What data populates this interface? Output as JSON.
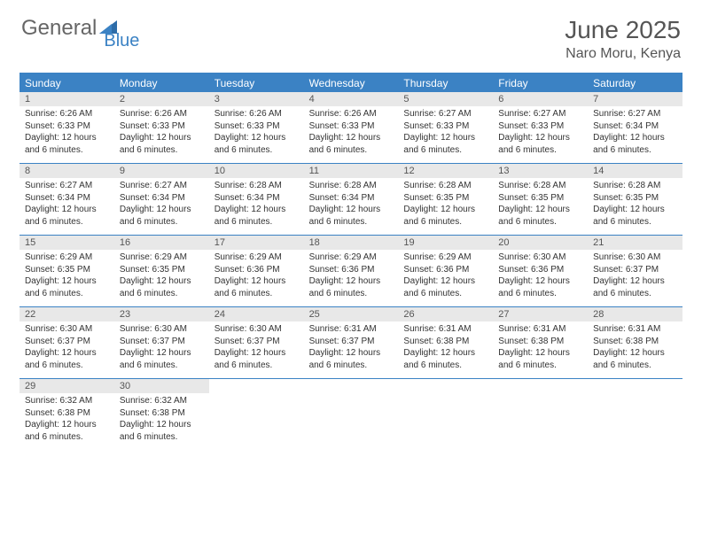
{
  "logo": {
    "general": "General",
    "blue": "Blue"
  },
  "header": {
    "title": "June 2025",
    "location": "Naro Moru, Kenya"
  },
  "colors": {
    "accent": "#3b82c4",
    "header_bg": "#3b82c4",
    "header_text": "#ffffff",
    "daynum_bg": "#e8e8e8",
    "text": "#333333",
    "title_text": "#555555"
  },
  "day_names": [
    "Sunday",
    "Monday",
    "Tuesday",
    "Wednesday",
    "Thursday",
    "Friday",
    "Saturday"
  ],
  "calendar": {
    "type": "table",
    "columns": 7,
    "weeks": [
      [
        {
          "n": "1",
          "sunrise": "6:26 AM",
          "sunset": "6:33 PM",
          "daylight": "12 hours and 6 minutes."
        },
        {
          "n": "2",
          "sunrise": "6:26 AM",
          "sunset": "6:33 PM",
          "daylight": "12 hours and 6 minutes."
        },
        {
          "n": "3",
          "sunrise": "6:26 AM",
          "sunset": "6:33 PM",
          "daylight": "12 hours and 6 minutes."
        },
        {
          "n": "4",
          "sunrise": "6:26 AM",
          "sunset": "6:33 PM",
          "daylight": "12 hours and 6 minutes."
        },
        {
          "n": "5",
          "sunrise": "6:27 AM",
          "sunset": "6:33 PM",
          "daylight": "12 hours and 6 minutes."
        },
        {
          "n": "6",
          "sunrise": "6:27 AM",
          "sunset": "6:33 PM",
          "daylight": "12 hours and 6 minutes."
        },
        {
          "n": "7",
          "sunrise": "6:27 AM",
          "sunset": "6:34 PM",
          "daylight": "12 hours and 6 minutes."
        }
      ],
      [
        {
          "n": "8",
          "sunrise": "6:27 AM",
          "sunset": "6:34 PM",
          "daylight": "12 hours and 6 minutes."
        },
        {
          "n": "9",
          "sunrise": "6:27 AM",
          "sunset": "6:34 PM",
          "daylight": "12 hours and 6 minutes."
        },
        {
          "n": "10",
          "sunrise": "6:28 AM",
          "sunset": "6:34 PM",
          "daylight": "12 hours and 6 minutes."
        },
        {
          "n": "11",
          "sunrise": "6:28 AM",
          "sunset": "6:34 PM",
          "daylight": "12 hours and 6 minutes."
        },
        {
          "n": "12",
          "sunrise": "6:28 AM",
          "sunset": "6:35 PM",
          "daylight": "12 hours and 6 minutes."
        },
        {
          "n": "13",
          "sunrise": "6:28 AM",
          "sunset": "6:35 PM",
          "daylight": "12 hours and 6 minutes."
        },
        {
          "n": "14",
          "sunrise": "6:28 AM",
          "sunset": "6:35 PM",
          "daylight": "12 hours and 6 minutes."
        }
      ],
      [
        {
          "n": "15",
          "sunrise": "6:29 AM",
          "sunset": "6:35 PM",
          "daylight": "12 hours and 6 minutes."
        },
        {
          "n": "16",
          "sunrise": "6:29 AM",
          "sunset": "6:35 PM",
          "daylight": "12 hours and 6 minutes."
        },
        {
          "n": "17",
          "sunrise": "6:29 AM",
          "sunset": "6:36 PM",
          "daylight": "12 hours and 6 minutes."
        },
        {
          "n": "18",
          "sunrise": "6:29 AM",
          "sunset": "6:36 PM",
          "daylight": "12 hours and 6 minutes."
        },
        {
          "n": "19",
          "sunrise": "6:29 AM",
          "sunset": "6:36 PM",
          "daylight": "12 hours and 6 minutes."
        },
        {
          "n": "20",
          "sunrise": "6:30 AM",
          "sunset": "6:36 PM",
          "daylight": "12 hours and 6 minutes."
        },
        {
          "n": "21",
          "sunrise": "6:30 AM",
          "sunset": "6:37 PM",
          "daylight": "12 hours and 6 minutes."
        }
      ],
      [
        {
          "n": "22",
          "sunrise": "6:30 AM",
          "sunset": "6:37 PM",
          "daylight": "12 hours and 6 minutes."
        },
        {
          "n": "23",
          "sunrise": "6:30 AM",
          "sunset": "6:37 PM",
          "daylight": "12 hours and 6 minutes."
        },
        {
          "n": "24",
          "sunrise": "6:30 AM",
          "sunset": "6:37 PM",
          "daylight": "12 hours and 6 minutes."
        },
        {
          "n": "25",
          "sunrise": "6:31 AM",
          "sunset": "6:37 PM",
          "daylight": "12 hours and 6 minutes."
        },
        {
          "n": "26",
          "sunrise": "6:31 AM",
          "sunset": "6:38 PM",
          "daylight": "12 hours and 6 minutes."
        },
        {
          "n": "27",
          "sunrise": "6:31 AM",
          "sunset": "6:38 PM",
          "daylight": "12 hours and 6 minutes."
        },
        {
          "n": "28",
          "sunrise": "6:31 AM",
          "sunset": "6:38 PM",
          "daylight": "12 hours and 6 minutes."
        }
      ],
      [
        {
          "n": "29",
          "sunrise": "6:32 AM",
          "sunset": "6:38 PM",
          "daylight": "12 hours and 6 minutes."
        },
        {
          "n": "30",
          "sunrise": "6:32 AM",
          "sunset": "6:38 PM",
          "daylight": "12 hours and 6 minutes."
        },
        null,
        null,
        null,
        null,
        null
      ]
    ],
    "labels": {
      "sunrise": "Sunrise:",
      "sunset": "Sunset:",
      "daylight": "Daylight:"
    }
  }
}
